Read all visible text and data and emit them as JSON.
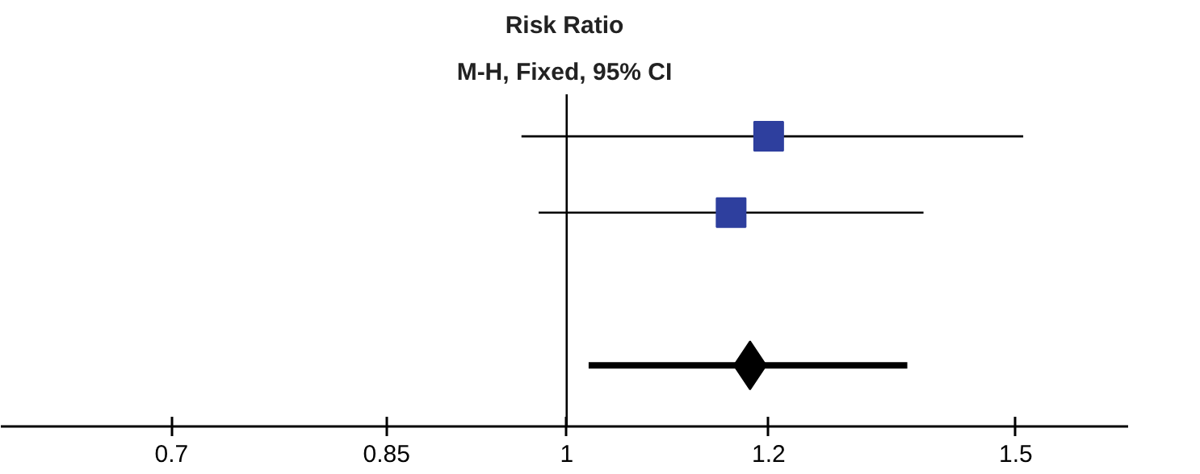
{
  "chart_data": {
    "type": "scatter",
    "title": "Risk Ratio",
    "subtitle": "M-H, Fixed, 95% CI",
    "orientation": "horizontal",
    "log": "x",
    "categories": [
      null,
      null,
      null,
      null
    ],
    "xlim": [
      0.6,
      1.66
    ],
    "xticks": [
      0.7,
      0.85,
      1,
      1.2,
      1.5
    ],
    "tick_labels": "x",
    "grid": false,
    "ref_lines": [
      {
        "axis": "x",
        "value": 1,
        "color": "#000000"
      }
    ],
    "series": [
      {
        "color": "#2e3f9e",
        "marker": "square",
        "values": [
          1.2,
          1.16,
          null,
          null
        ],
        "errors": [
          [
            0.96,
            1.51
          ],
          [
            0.975,
            1.38
          ],
          null,
          null
        ]
      },
      {
        "color": "#000000",
        "marker": "diamond",
        "values": [
          null,
          null,
          null,
          1.18
        ],
        "errors": [
          null,
          null,
          null,
          [
            1.02,
            1.36
          ]
        ]
      }
    ]
  }
}
